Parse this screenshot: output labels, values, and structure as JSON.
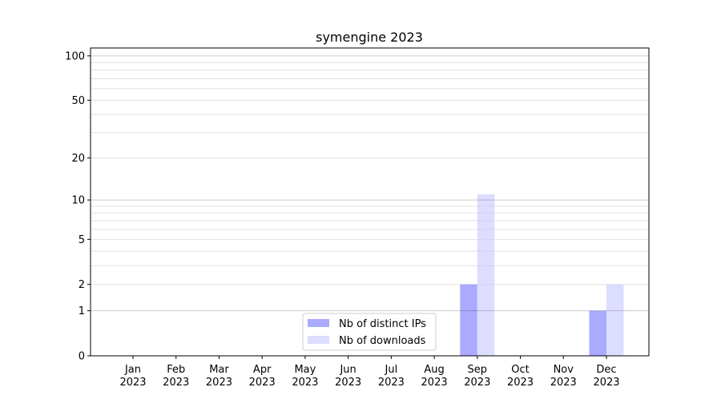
{
  "chart_data": {
    "type": "bar",
    "title": "symengine 2023",
    "xlabel": "",
    "ylabel": "",
    "categories": [
      "Jan\n2023",
      "Feb\n2023",
      "Mar\n2023",
      "Apr\n2023",
      "May\n2023",
      "Jun\n2023",
      "Jul\n2023",
      "Aug\n2023",
      "Sep\n2023",
      "Oct\n2023",
      "Nov\n2023",
      "Dec\n2023"
    ],
    "series": [
      {
        "name": "Nb of distinct IPs",
        "color": "#aaaaff",
        "values": [
          0,
          0,
          0,
          0,
          0,
          0,
          0,
          0,
          2,
          0,
          0,
          1
        ]
      },
      {
        "name": "Nb of downloads",
        "color": "#ddddff",
        "values": [
          0,
          0,
          0,
          0,
          0,
          0,
          0,
          0,
          11,
          0,
          0,
          2
        ]
      }
    ],
    "yscale": "log(1+y)",
    "ylim": [
      0,
      113
    ],
    "yticks": [
      0,
      1,
      2,
      5,
      10,
      20,
      50,
      100
    ],
    "grid": true,
    "legend": "lower-center"
  }
}
